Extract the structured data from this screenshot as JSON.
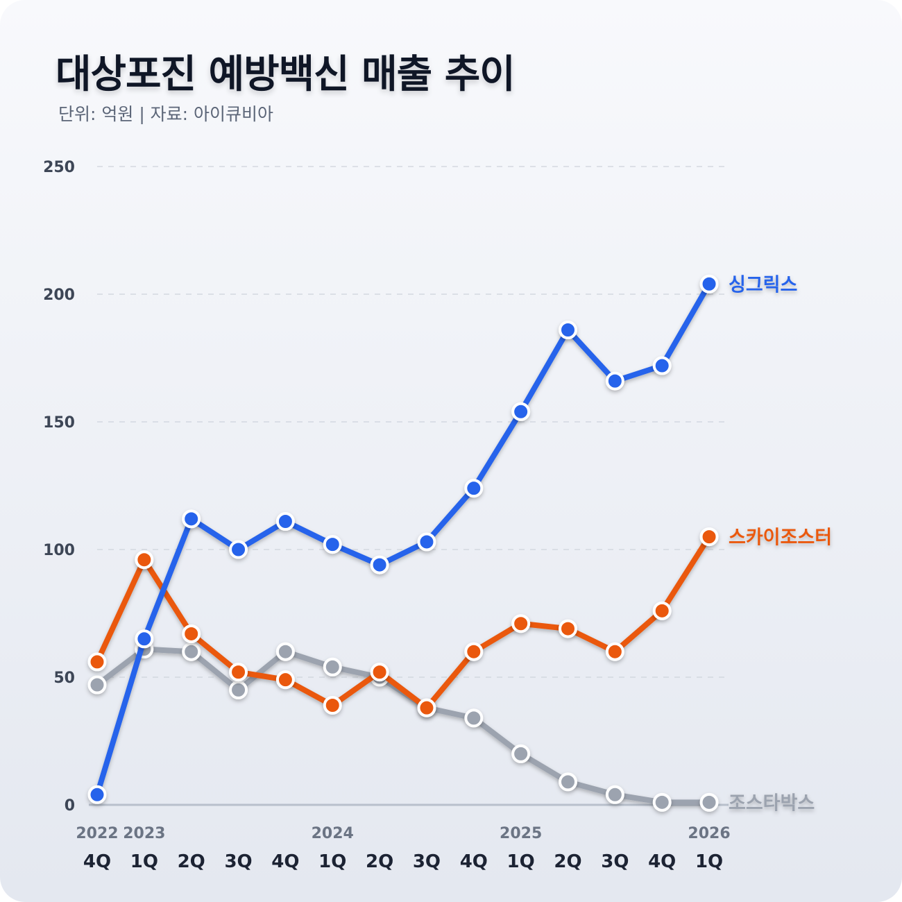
{
  "header": {
    "title": "대상포진 예방백신 매출 추이",
    "subtitle": "단위: 억원 | 자료: 아이큐비아"
  },
  "chart_data": {
    "type": "line",
    "title": "대상포진 예방백신 매출 추이",
    "subtitle": "단위: 억원 | 자료: 아이큐비아",
    "ylim": [
      0,
      250
    ],
    "yticks": [
      0,
      50,
      100,
      150,
      200,
      250
    ],
    "grid": true,
    "legend": "inline-right",
    "x": [
      "2022 4Q",
      "2023 1Q",
      "2023 2Q",
      "2023 3Q",
      "2023 4Q",
      "2024 1Q",
      "2024 2Q",
      "2024 3Q",
      "2024 4Q",
      "2025 1Q",
      "2025 2Q",
      "2025 3Q",
      "2025 4Q",
      "2026 1Q"
    ],
    "x_quarters": [
      "4Q",
      "1Q",
      "2Q",
      "3Q",
      "4Q",
      "1Q",
      "2Q",
      "3Q",
      "4Q",
      "1Q",
      "2Q",
      "3Q",
      "4Q",
      "1Q"
    ],
    "x_years": [
      {
        "index": 0,
        "label": "2022"
      },
      {
        "index": 1,
        "label": "2023"
      },
      {
        "index": 5,
        "label": "2024"
      },
      {
        "index": 9,
        "label": "2025"
      },
      {
        "index": 13,
        "label": "2026"
      }
    ],
    "series": [
      {
        "name": "조스타박스",
        "color": "#9ca3af",
        "values": [
          47,
          61,
          60,
          45,
          60,
          54,
          50,
          38,
          34,
          20,
          9,
          4,
          1,
          1
        ]
      },
      {
        "name": "스카이조스터",
        "color": "#ea580c",
        "values": [
          56,
          96,
          67,
          52,
          49,
          39,
          52,
          38,
          60,
          71,
          69,
          60,
          76,
          105
        ]
      },
      {
        "name": "싱그릭스",
        "color": "#2563eb",
        "values": [
          4,
          65,
          112,
          100,
          111,
          102,
          94,
          103,
          124,
          154,
          186,
          166,
          172,
          204
        ]
      }
    ]
  }
}
